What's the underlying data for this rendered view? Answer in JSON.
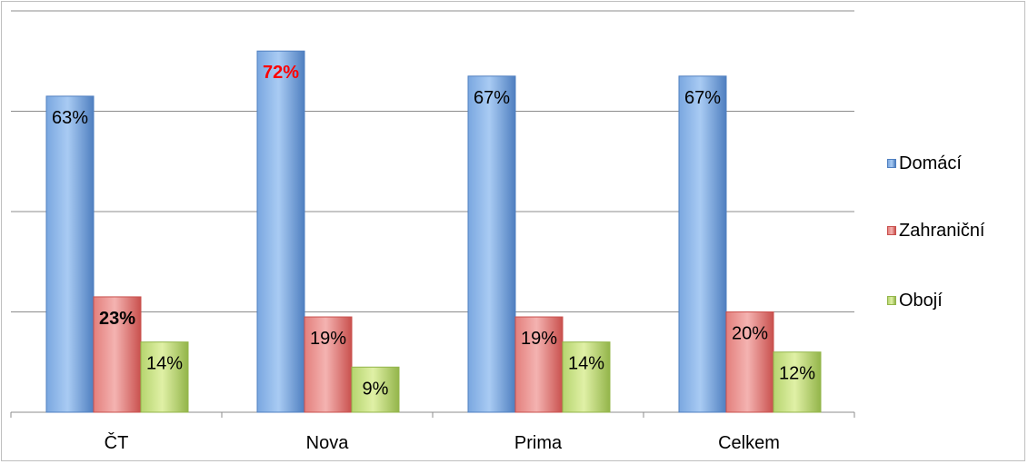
{
  "chart_data": {
    "type": "bar",
    "categories": [
      "ČT",
      "Nova",
      "Prima",
      "Celkem"
    ],
    "series": [
      {
        "name": "Domácí",
        "values": [
          63,
          72,
          67,
          67
        ],
        "labels": [
          "63%",
          "72%",
          "67%",
          "67%"
        ],
        "color": "#4f81bd",
        "highlight": [
          false,
          true,
          false,
          false
        ]
      },
      {
        "name": "Zahraniční",
        "values": [
          23,
          19,
          19,
          20
        ],
        "labels": [
          "23%",
          "19%",
          "19%",
          "20%"
        ],
        "color": "#c0504d",
        "highlight": [
          true,
          false,
          false,
          false
        ]
      },
      {
        "name": "Obojí",
        "values": [
          14,
          9,
          14,
          12
        ],
        "labels": [
          "14%",
          "9%",
          "14%",
          "12%"
        ],
        "color": "#9bbb59",
        "highlight": [
          false,
          false,
          false,
          false
        ]
      }
    ],
    "ylim": [
      0,
      80
    ],
    "grid": true,
    "legend": "right",
    "highlight_color": "#ff0000"
  }
}
